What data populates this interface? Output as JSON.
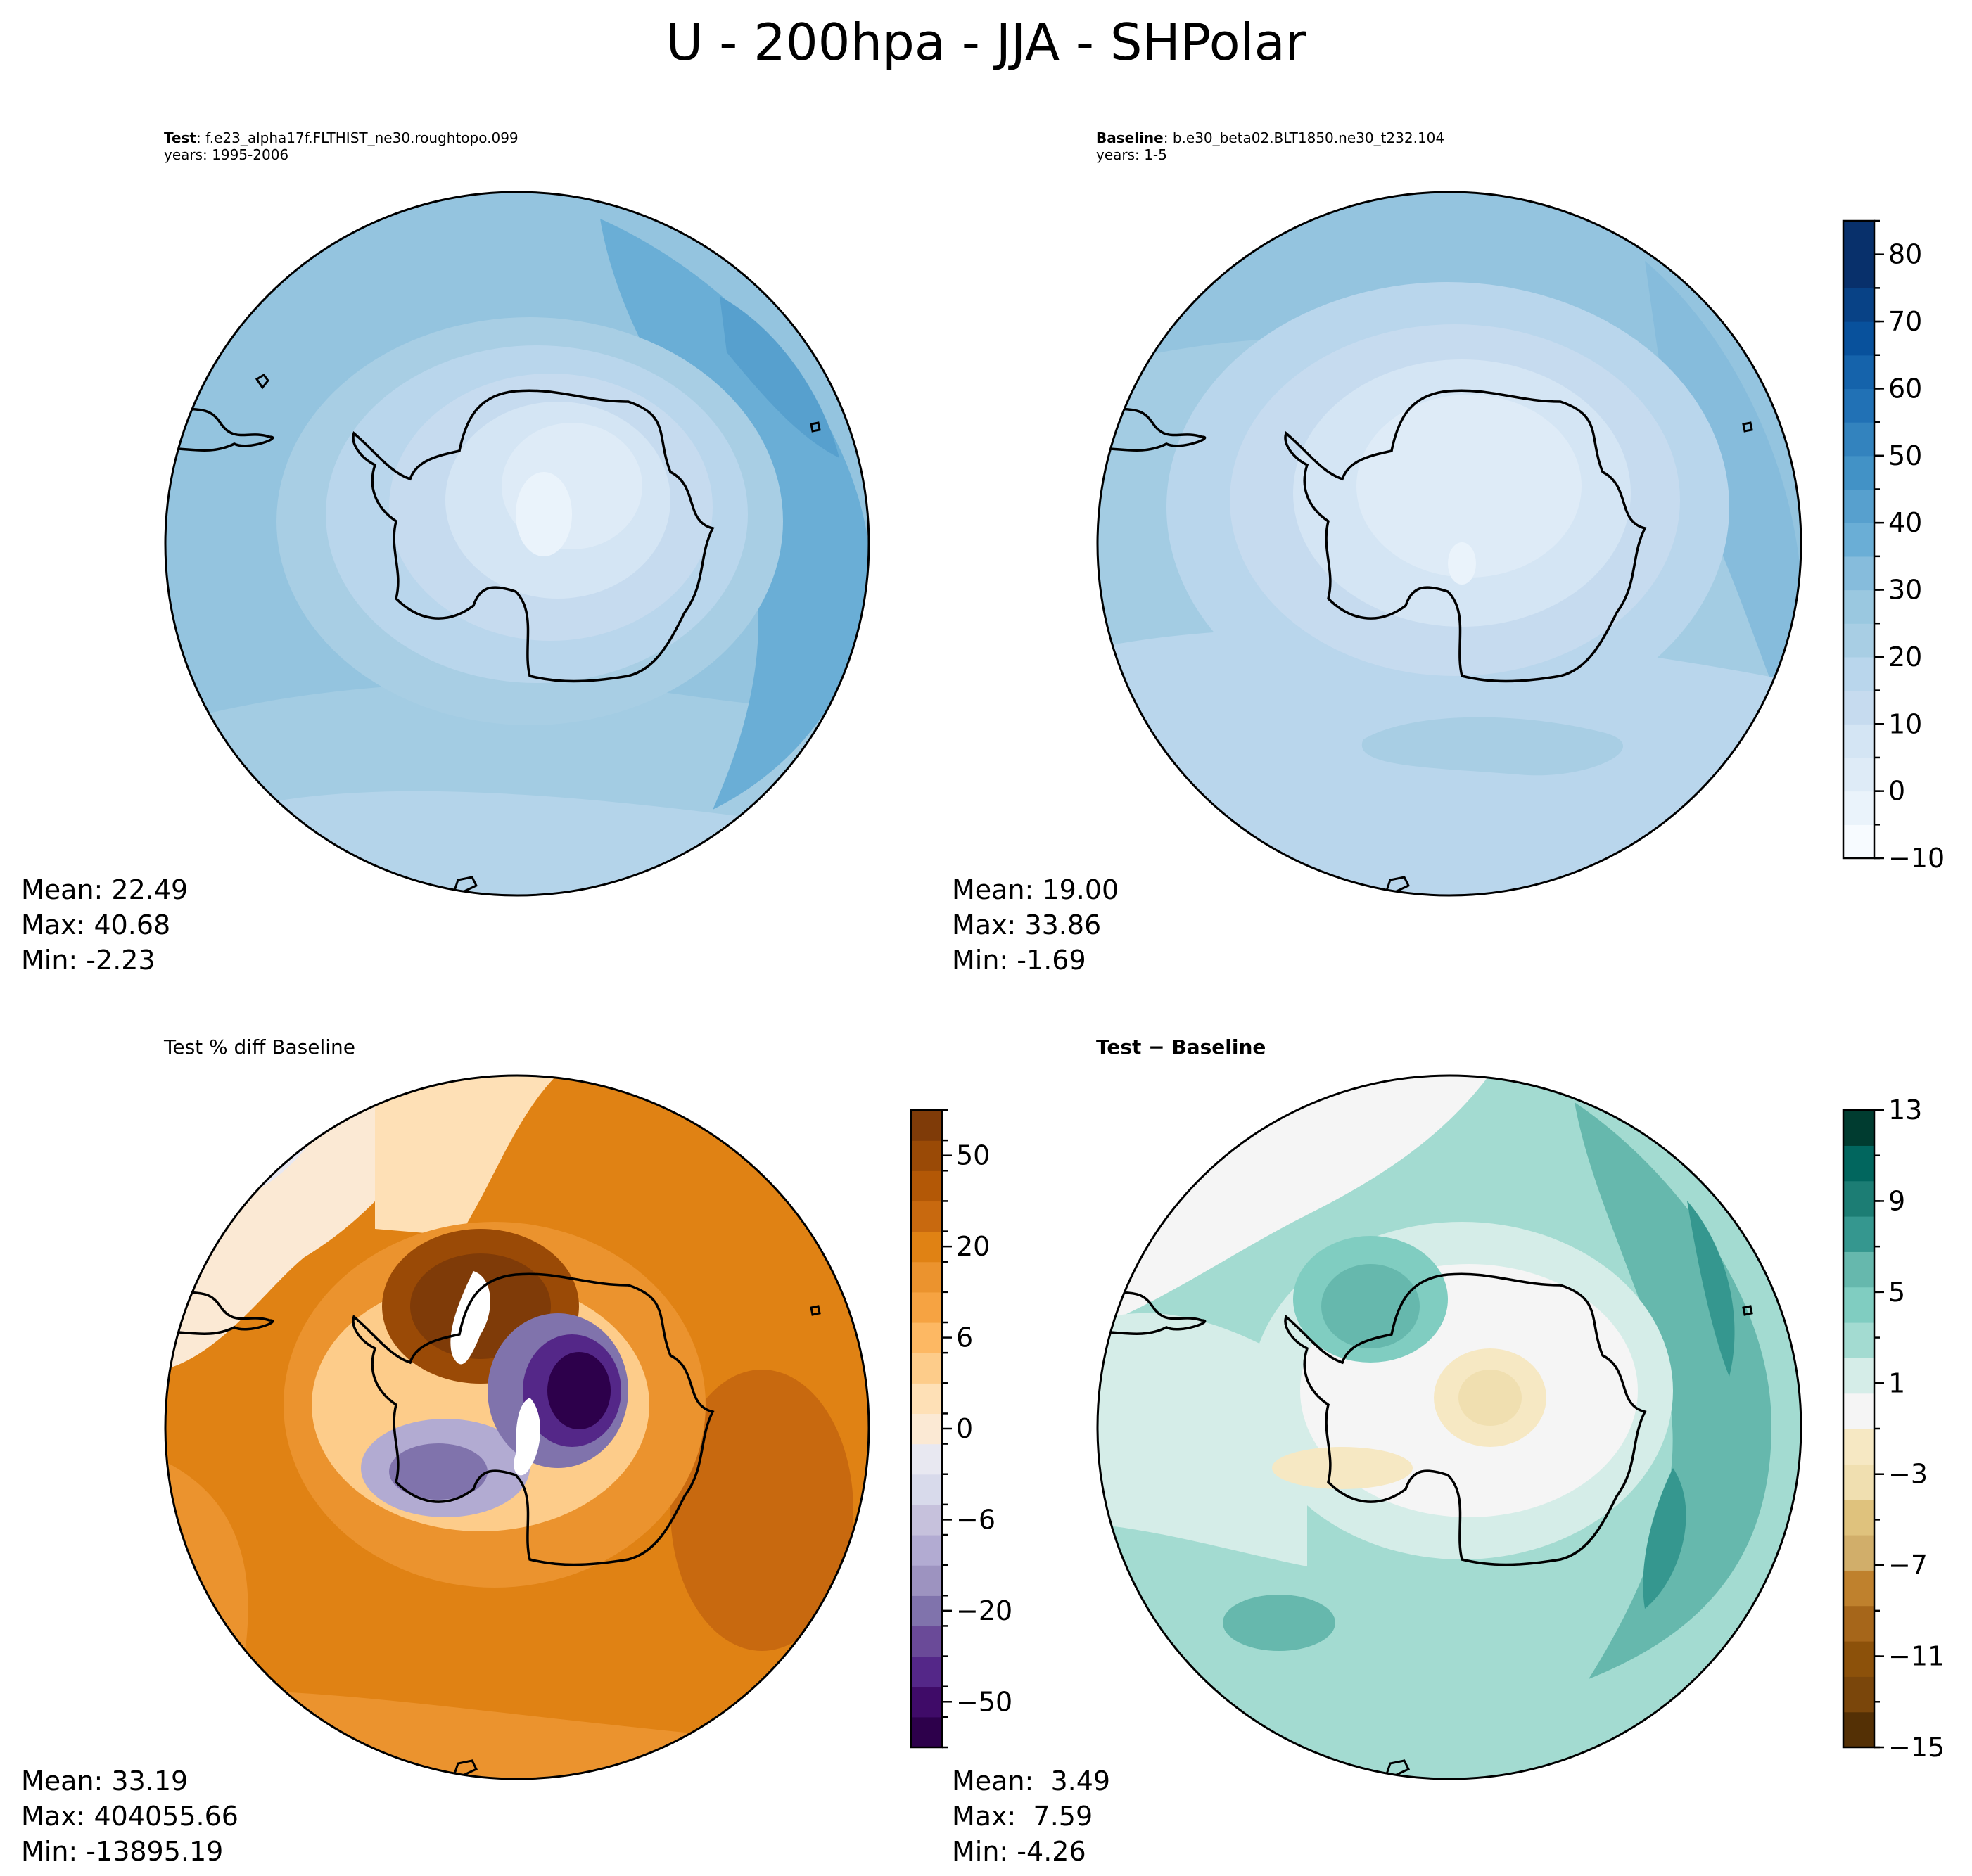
{
  "figure": {
    "title": "U - 200hpa - JJA - SHPolar"
  },
  "panels": {
    "test": {
      "label": "Test",
      "case": "f.e23_alpha17f.FLTHIST_ne30.roughtopo.099",
      "years": "years: 1995-2006",
      "stats": {
        "mean": "Mean: 22.49",
        "max": "Max: 40.68",
        "min": "Min: -2.23"
      }
    },
    "baseline": {
      "label": "Baseline",
      "case": "b.e30_beta02.BLT1850.ne30_t232.104",
      "years": "years: 1-5",
      "stats": {
        "mean": "Mean: 19.00",
        "max": "Max: 33.86",
        "min": "Min: -1.69"
      }
    },
    "pctdiff": {
      "title": "Test % diff Baseline",
      "stats": {
        "mean": "Mean: 33.19",
        "max": "Max: 404055.66",
        "min": "Min: -13895.19"
      }
    },
    "diff": {
      "title": "Test − Baseline",
      "stats": {
        "mean": "Mean:  3.49",
        "max": "Max:  7.59",
        "min": "Min: -4.26"
      }
    }
  },
  "chart_data": [
    {
      "type": "heatmap",
      "name": "test",
      "projection": "south polar stereographic",
      "stats": {
        "mean": 22.49,
        "max": 40.68,
        "min": -2.23
      }
    },
    {
      "type": "heatmap",
      "name": "baseline",
      "projection": "south polar stereographic",
      "stats": {
        "mean": 19.0,
        "max": 33.86,
        "min": -1.69
      },
      "colorbar": {
        "range": [
          -10,
          85
        ],
        "step": 5,
        "ticks": [
          -10,
          0,
          10,
          20,
          30,
          40,
          50,
          60,
          70,
          80
        ],
        "tick_labels": [
          "−10",
          "0",
          "10",
          "20",
          "30",
          "40",
          "50",
          "60",
          "70",
          "80"
        ]
      }
    },
    {
      "type": "heatmap",
      "name": "pctdiff",
      "projection": "south polar stereographic",
      "stats": {
        "mean": 33.19,
        "max": 404055.66,
        "min": -13895.19
      },
      "colorbar": {
        "levels": 18,
        "ticks": [
          -50,
          -20,
          -6,
          0,
          6,
          20,
          50
        ],
        "tick_labels": [
          "−50",
          "−20",
          "−6",
          "0",
          "6",
          "20",
          "50"
        ]
      }
    },
    {
      "type": "heatmap",
      "name": "diff",
      "projection": "south polar stereographic",
      "stats": {
        "mean": 3.49,
        "max": 7.59,
        "min": -4.26
      },
      "colorbar": {
        "range": [
          -15,
          13
        ],
        "step": 2,
        "ticks": [
          -15,
          -11,
          -7,
          -3,
          1,
          5,
          9,
          13
        ],
        "tick_labels": [
          "−15",
          "−11",
          "−7",
          "−3",
          "1",
          "5",
          "9",
          "13"
        ]
      }
    }
  ],
  "colors": {
    "blues": [
      "#f7fbff",
      "#eaf3fb",
      "#deebf7",
      "#d4e5f4",
      "#c6dbef",
      "#b9d6ec",
      "#a8cee4",
      "#9ac8e0",
      "#86bcdc",
      "#6aaed6",
      "#57a0ce",
      "#4292c6",
      "#3383be",
      "#2171b5",
      "#1563ab",
      "#08519c",
      "#084286",
      "#08306b",
      "#08306b"
    ],
    "puor_neg": [
      "#2d004b",
      "#3f0b68",
      "#542788",
      "#6a4a98",
      "#8073ac",
      "#9d93c0",
      "#b2abd2",
      "#c6c1dc",
      "#d8daeb",
      "#e8e8f1"
    ],
    "puor_pos": [
      "#fbe9d4",
      "#fee0b6",
      "#fdcc8a",
      "#fdb863",
      "#f6a342",
      "#eb932e",
      "#e08214",
      "#c8690f",
      "#b35806",
      "#9a4a06",
      "#7f3b08"
    ],
    "brbg_neg": [
      "#543005",
      "#7a460b",
      "#8c510a",
      "#a6661a",
      "#bf812d",
      "#d1ae6a",
      "#dfc27d",
      "#f0dfb0",
      "#f6e8c3"
    ],
    "brbg_pos": [
      "#f5f5f5",
      "#d5ede8",
      "#a3dbd1",
      "#80cdc1",
      "#66b8ad",
      "#35978f",
      "#1c7d74",
      "#01665e",
      "#003c30"
    ],
    "coast": "#000000",
    "wire": "#000000"
  }
}
